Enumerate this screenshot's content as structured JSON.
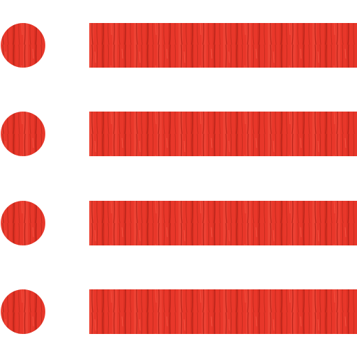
{
  "icon": {
    "name": "bulleted-list-icon",
    "items": 4,
    "base_color": "#e8372a",
    "highlight_color": "#f04c3c",
    "grain_color": "#b7241a"
  }
}
